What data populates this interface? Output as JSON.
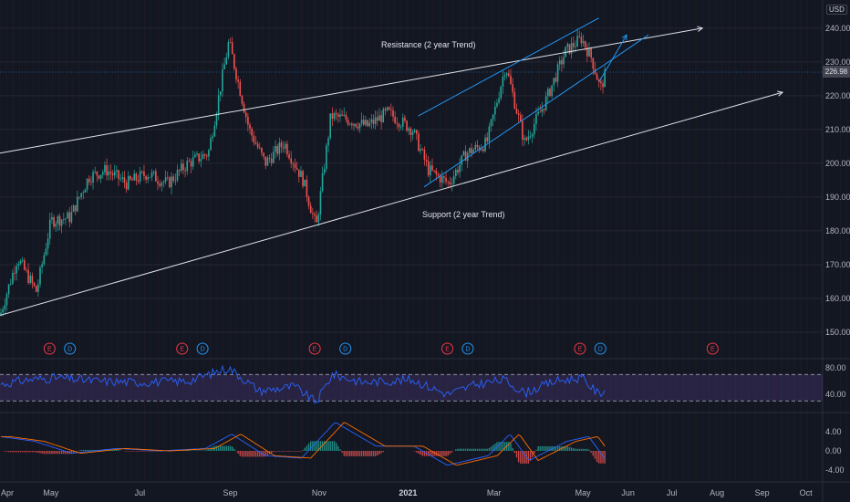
{
  "currency": "USD",
  "last_price": "226.98",
  "colors": {
    "background": "#131722",
    "up": "#26a69a",
    "down": "#ef5350",
    "trend_lines": "#e0e3eb",
    "channel": "#2196f3",
    "rsi_line": "#2962ff",
    "rsi_band": "#7e57c2",
    "macd_line": "#2962ff",
    "signal_line": "#ff6d00"
  },
  "annotations": {
    "resistance": "Resistance (2 year Trend)",
    "support": "Support (2 year Trend)"
  },
  "events": [
    {
      "label": "E",
      "type": "earnings",
      "date": "2020-04-30"
    },
    {
      "label": "D",
      "type": "dividend",
      "date": "2020-05-14"
    },
    {
      "label": "E",
      "type": "earnings",
      "date": "2020-07-30"
    },
    {
      "label": "D",
      "type": "dividend",
      "date": "2020-08-13"
    },
    {
      "label": "E",
      "type": "earnings",
      "date": "2020-10-29"
    },
    {
      "label": "D",
      "type": "dividend",
      "date": "2020-11-19"
    },
    {
      "label": "E",
      "type": "earnings",
      "date": "2021-01-28"
    },
    {
      "label": "D",
      "type": "dividend",
      "date": "2021-02-11"
    },
    {
      "label": "E",
      "type": "earnings",
      "date": "2021-04-29"
    },
    {
      "label": "D",
      "type": "dividend",
      "date": "2021-05-13"
    },
    {
      "label": "E",
      "type": "earnings",
      "date": "2021-07-29"
    }
  ],
  "x_ticks": [
    {
      "label": "Apr",
      "date": "2020-04-01",
      "bold": false
    },
    {
      "label": "May",
      "date": "2020-05-01",
      "bold": false
    },
    {
      "label": "Jul",
      "date": "2020-07-01",
      "bold": false
    },
    {
      "label": "Sep",
      "date": "2020-09-01",
      "bold": false
    },
    {
      "label": "Nov",
      "date": "2020-11-01",
      "bold": false
    },
    {
      "label": "2021",
      "date": "2021-01-01",
      "bold": true
    },
    {
      "label": "Mar",
      "date": "2021-03-01",
      "bold": false
    },
    {
      "label": "May",
      "date": "2021-05-01",
      "bold": false
    },
    {
      "label": "Jun",
      "date": "2021-06-01",
      "bold": false
    },
    {
      "label": "Jul",
      "date": "2021-07-01",
      "bold": false
    },
    {
      "label": "Aug",
      "date": "2021-08-01",
      "bold": false
    },
    {
      "label": "Sep",
      "date": "2021-09-01",
      "bold": false
    },
    {
      "label": "Oct",
      "date": "2021-10-01",
      "bold": false
    }
  ],
  "chart_data": [
    {
      "type": "line",
      "panel": "price",
      "y_ticks": [
        "240.00",
        "230.00",
        "220.00",
        "210.00",
        "200.00",
        "190.00",
        "180.00",
        "170.00",
        "160.00",
        "150.00"
      ],
      "ylim": [
        145,
        245
      ],
      "xlim": [
        "2020-03-27",
        "2021-10-05"
      ],
      "grid": true,
      "series": [
        {
          "values_key": "close",
          "x": [
            "2020-03-27",
            "2020-04-08",
            "2020-04-21",
            "2020-05-01",
            "2020-05-14",
            "2020-05-27",
            "2020-06-08",
            "2020-06-22",
            "2020-07-06",
            "2020-07-20",
            "2020-08-03",
            "2020-08-17",
            "2020-08-31",
            "2020-09-14",
            "2020-09-25",
            "2020-10-08",
            "2020-10-21",
            "2020-10-30",
            "2020-11-09",
            "2020-11-20",
            "2020-12-04",
            "2020-12-18",
            "2021-01-04",
            "2021-01-15",
            "2021-01-29",
            "2021-02-10",
            "2021-02-24",
            "2021-03-09",
            "2021-03-22",
            "2021-04-05",
            "2021-04-19",
            "2021-04-30",
            "2021-05-07",
            "2021-05-13",
            "2021-05-17"
          ],
          "y": [
            155,
            172,
            162,
            183,
            184,
            196,
            198,
            194,
            197,
            194,
            200,
            203,
            236,
            210,
            200,
            206,
            195,
            181,
            214,
            213,
            211,
            215,
            210,
            198,
            194,
            203,
            206,
            229,
            206,
            218,
            233,
            237,
            231,
            222,
            227
          ]
        }
      ],
      "trendlines": [
        {
          "name": "Resistance (2 year Trend)",
          "x": [
            "2020-03-27",
            "2021-07-22"
          ],
          "y": [
            203,
            240
          ]
        },
        {
          "name": "Support (2 year Trend)",
          "x": [
            "2020-03-27",
            "2021-09-15"
          ],
          "y": [
            155,
            221
          ]
        },
        {
          "name": "channel-upper",
          "x": [
            "2021-01-08",
            "2021-05-12"
          ],
          "y": [
            214,
            243
          ]
        },
        {
          "name": "channel-lower",
          "x": [
            "2021-01-12",
            "2021-06-15"
          ],
          "y": [
            193,
            238
          ]
        },
        {
          "name": "projection",
          "x": [
            "2021-05-12",
            "2021-05-31"
          ],
          "y": [
            224,
            238
          ]
        }
      ]
    },
    {
      "type": "line",
      "panel": "RSI",
      "y_ticks": [
        "80.00",
        "40.00"
      ],
      "ylim": [
        25,
        90
      ],
      "bands": [
        70,
        30
      ],
      "series": [
        {
          "name": "",
          "x": [
            "2020-03-27",
            "2020-04-15",
            "2020-05-05",
            "2020-06-01",
            "2020-07-01",
            "2020-08-03",
            "2020-08-31",
            "2020-09-21",
            "2020-10-15",
            "2020-10-30",
            "2020-11-10",
            "2020-12-01",
            "2021-01-04",
            "2021-01-28",
            "2021-02-17",
            "2021-03-08",
            "2021-03-22",
            "2021-04-12",
            "2021-04-30",
            "2021-05-12",
            "2021-05-17"
          ],
          "y": [
            55,
            62,
            65,
            60,
            58,
            60,
            80,
            45,
            52,
            28,
            70,
            58,
            62,
            40,
            55,
            62,
            42,
            60,
            65,
            40,
            50
          ]
        }
      ]
    },
    {
      "type": "line",
      "panel": "MACD",
      "y_ticks": [
        "4.00",
        "0.00",
        "-4.00"
      ],
      "ylim": [
        -6,
        6
      ],
      "series": [
        {
          "name": "",
          "x": [
            "2020-03-27",
            "2020-04-20",
            "2020-05-15",
            "2020-06-15",
            "2020-07-15",
            "2020-08-15",
            "2020-09-02",
            "2020-09-25",
            "2020-10-20",
            "2020-11-12",
            "2020-12-10",
            "2021-01-05",
            "2021-01-28",
            "2021-02-25",
            "2021-03-12",
            "2021-03-25",
            "2021-04-20",
            "2021-05-05",
            "2021-05-17"
          ],
          "y": [
            3,
            2,
            -0.5,
            0.5,
            0,
            0.5,
            3.5,
            -1,
            -1.5,
            6,
            1,
            1,
            -3,
            -1,
            3.5,
            -2,
            2,
            3,
            -2
          ]
        }
      ]
    }
  ]
}
